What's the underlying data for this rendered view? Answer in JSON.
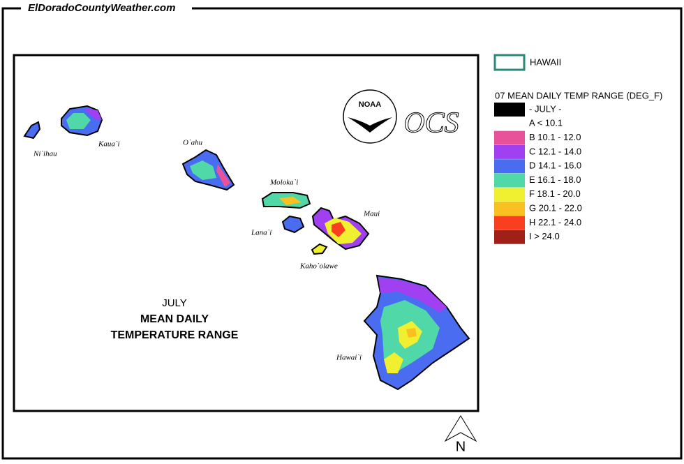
{
  "header": {
    "site": "ElDoradoCountyWeather.com"
  },
  "map": {
    "islands": [
      "Ni`ihau",
      "Kaua`i",
      "O`ahu",
      "Moloka`i",
      "Lana`i",
      "Maui",
      "Kaho`olawe",
      "Hawai`i"
    ],
    "caption": [
      "JULY",
      "MEAN DAILY",
      "TEMPERATURE RANGE"
    ],
    "logos": {
      "noaa": "NOAA",
      "ocs": "OCS",
      "north": "N"
    }
  },
  "legend": {
    "region": "HAWAII",
    "title": "07 MEAN DAILY TEMP RANGE (DEG_F)",
    "items": [
      {
        "label": "- JULY -",
        "color": "#000000"
      },
      {
        "label": "A < 10.1",
        "color": "#ffffff"
      },
      {
        "label": "B 10.1 - 12.0",
        "color": "#e8529a"
      },
      {
        "label": "C 12.1 - 14.0",
        "color": "#a040f0"
      },
      {
        "label": "D 14.1 - 16.0",
        "color": "#4a6cf0"
      },
      {
        "label": "E 16.1 - 18.0",
        "color": "#50d8a8"
      },
      {
        "label": "F 18.1 - 20.0",
        "color": "#f0f030"
      },
      {
        "label": "G 20.1 - 22.0",
        "color": "#f8c020"
      },
      {
        "label": "H 22.1 - 24.0",
        "color": "#f84020"
      },
      {
        "label": "I > 24.0",
        "color": "#a02018"
      }
    ]
  }
}
